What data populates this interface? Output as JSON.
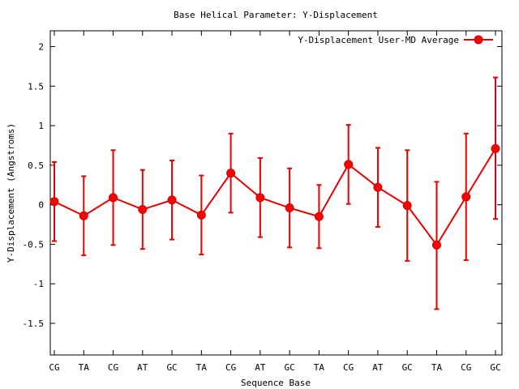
{
  "chart_data": {
    "type": "line",
    "title": "Base  Helical Parameter: Y-Displacement",
    "xlabel": "Sequence Base",
    "ylabel": "Y-Displacement (Angstroms)",
    "categories": [
      "CG",
      "TA",
      "CG",
      "AT",
      "GC",
      "TA",
      "CG",
      "AT",
      "GC",
      "TA",
      "CG",
      "AT",
      "GC",
      "TA",
      "CG",
      "GC"
    ],
    "ylim": [
      -1.9,
      2.2
    ],
    "yticks": [
      -1.5,
      -1,
      -0.5,
      0,
      0.5,
      1,
      1.5,
      2
    ],
    "ytick_labels": [
      "-1.5",
      "-1",
      "-0.5",
      "0",
      "0.5",
      "1",
      "1.5",
      "2"
    ],
    "legend_position": "top-right",
    "grid": false,
    "series": [
      {
        "name": "Y-Displacement User-MD Average",
        "color": "#ff0000",
        "values": [
          0.04,
          -0.14,
          0.09,
          -0.06,
          0.06,
          -0.13,
          0.4,
          0.09,
          -0.04,
          -0.15,
          0.51,
          0.22,
          -0.01,
          -0.51,
          0.1,
          0.71
        ],
        "err_low": [
          -0.46,
          -0.64,
          -0.51,
          -0.56,
          -0.44,
          -0.63,
          -0.1,
          -0.41,
          -0.54,
          -0.55,
          0.01,
          -0.28,
          -0.71,
          -1.32,
          -0.7,
          -0.18
        ],
        "err_high": [
          0.54,
          0.36,
          0.69,
          0.44,
          0.56,
          0.37,
          0.9,
          0.59,
          0.46,
          0.25,
          1.01,
          0.72,
          0.69,
          0.29,
          0.9,
          1.61
        ]
      }
    ]
  }
}
